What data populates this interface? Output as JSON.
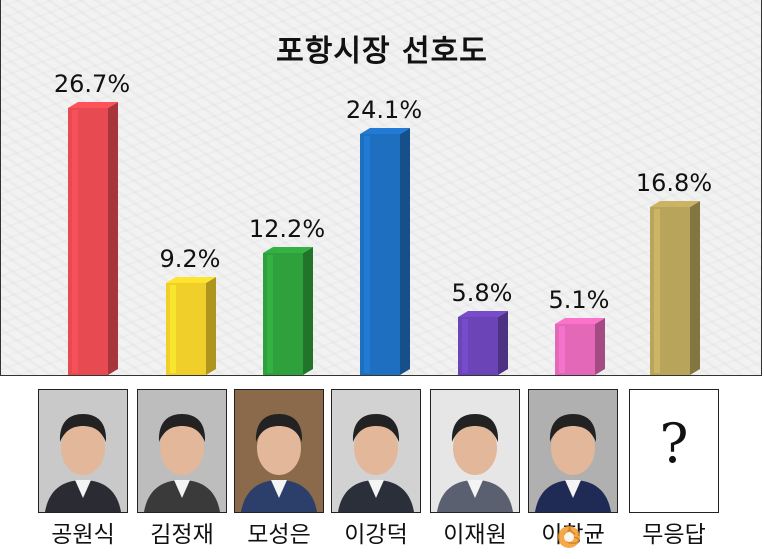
{
  "chart_data": {
    "type": "bar",
    "title": "포항시장 선호도",
    "categories": [
      "공원식",
      "김정재",
      "모성은",
      "이강덕",
      "이재원",
      "이창균",
      "무응답"
    ],
    "values": [
      26.7,
      9.2,
      12.2,
      24.1,
      5.8,
      5.1,
      16.8
    ],
    "data_labels": [
      "26.7%",
      "9.2%",
      "12.2%",
      "24.1%",
      "5.8%",
      "5.1%",
      "16.8%"
    ],
    "colors": [
      "#e84a52",
      "#f0cf2a",
      "#2fa13c",
      "#1e6fc0",
      "#6b45b8",
      "#e468b8",
      "#b8a45a"
    ],
    "ylim": [
      0,
      30
    ],
    "grid": false,
    "legend": "none"
  },
  "candidates": [
    {
      "name": "공원식",
      "photo_icon": "portrait-icon"
    },
    {
      "name": "김정재",
      "photo_icon": "portrait-icon"
    },
    {
      "name": "모성은",
      "photo_icon": "portrait-icon"
    },
    {
      "name": "이강덕",
      "photo_icon": "portrait-icon"
    },
    {
      "name": "이재원",
      "photo_icon": "portrait-icon"
    },
    {
      "name": "이창균",
      "photo_icon": "portrait-icon"
    },
    {
      "name": "무응답",
      "photo_icon": "question-mark-icon",
      "symbol": "?"
    }
  ]
}
